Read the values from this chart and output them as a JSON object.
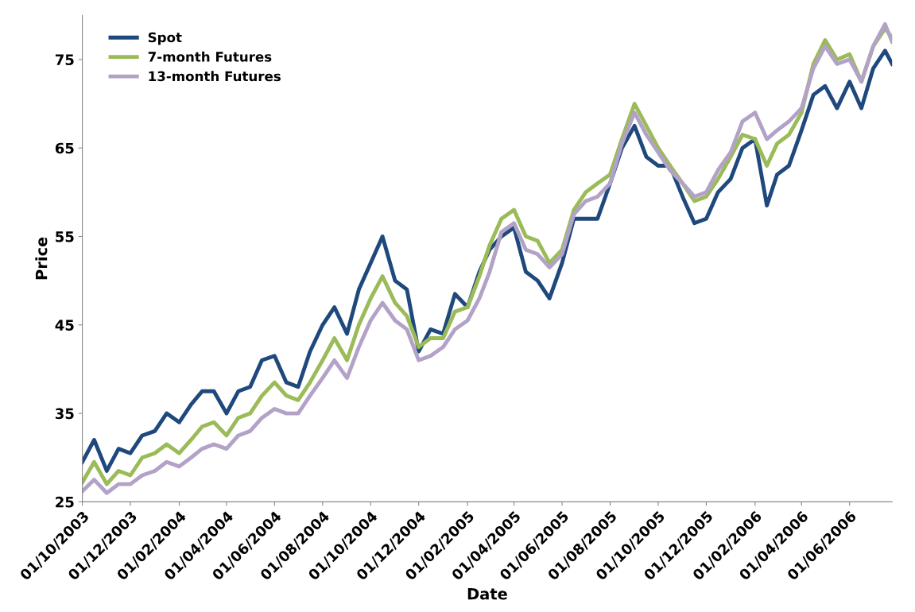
{
  "chart_data": {
    "type": "line",
    "xlabel": "Date",
    "ylabel": "Price",
    "x": [
      "2003-10-01",
      "2003-10-16",
      "2003-11-01",
      "2003-11-16",
      "2003-12-01",
      "2003-12-16",
      "2004-01-01",
      "2004-01-16",
      "2004-02-01",
      "2004-02-16",
      "2004-03-01",
      "2004-03-16",
      "2004-04-01",
      "2004-04-16",
      "2004-05-01",
      "2004-05-16",
      "2004-06-01",
      "2004-06-16",
      "2004-07-01",
      "2004-07-16",
      "2004-08-01",
      "2004-08-16",
      "2004-09-01",
      "2004-09-16",
      "2004-10-01",
      "2004-10-16",
      "2004-11-01",
      "2004-11-16",
      "2004-12-01",
      "2004-12-16",
      "2005-01-01",
      "2005-01-16",
      "2005-02-01",
      "2005-02-16",
      "2005-03-01",
      "2005-03-16",
      "2005-04-01",
      "2005-04-16",
      "2005-05-01",
      "2005-05-16",
      "2005-06-01",
      "2005-06-16",
      "2005-07-01",
      "2005-07-16",
      "2005-08-01",
      "2005-08-16",
      "2005-09-01",
      "2005-09-16",
      "2005-10-01",
      "2005-10-16",
      "2005-11-01",
      "2005-11-16",
      "2005-12-01",
      "2005-12-16",
      "2006-01-01",
      "2006-01-16",
      "2006-02-01",
      "2006-02-16",
      "2006-03-01",
      "2006-03-16",
      "2006-04-01",
      "2006-04-16",
      "2006-05-01",
      "2006-05-16",
      "2006-06-01",
      "2006-06-16",
      "2006-07-01",
      "2006-07-16",
      "2006-07-25"
    ],
    "series": [
      {
        "name": "Spot",
        "color": "#1f497d",
        "values": [
          29.5,
          32,
          28.5,
          31,
          30.5,
          32.5,
          33,
          35,
          34,
          36,
          37.5,
          37.5,
          35,
          37.5,
          38,
          41,
          41.5,
          38.5,
          38,
          42,
          45,
          47,
          44,
          49,
          52,
          55,
          50,
          49,
          42,
          44.5,
          44,
          48.5,
          47,
          51,
          53.5,
          55,
          56,
          51,
          50,
          48,
          52,
          57,
          57,
          57,
          61,
          65,
          67.5,
          64,
          63,
          63,
          59.5,
          56.5,
          57,
          60,
          61.5,
          65,
          66,
          58.5,
          62,
          63,
          67,
          71,
          72,
          69.5,
          72.5,
          69.5,
          74,
          76,
          74.5
        ]
      },
      {
        "name": "7-month Futures",
        "color": "#9bbb59",
        "values": [
          27.2,
          29.5,
          27,
          28.5,
          28,
          30,
          30.5,
          31.5,
          30.5,
          32,
          33.5,
          34,
          32.5,
          34.5,
          35,
          37,
          38.5,
          37,
          36.5,
          38.5,
          41,
          43.5,
          41,
          45,
          48,
          50.5,
          47.5,
          46,
          42.5,
          43.5,
          43.5,
          46.5,
          47,
          50.5,
          54,
          57,
          58,
          55,
          54.5,
          52,
          53.5,
          58,
          60,
          61,
          62,
          66,
          70,
          67.5,
          65,
          63,
          61,
          59,
          59.5,
          61.5,
          64,
          66.5,
          66,
          63,
          65.5,
          66.5,
          69,
          74.5,
          77.2,
          75,
          75.6,
          72.5,
          76.5,
          78.5,
          77.5
        ]
      },
      {
        "name": "13-month Futures",
        "color": "#b3a2c7",
        "values": [
          26.2,
          27.5,
          26,
          27,
          27,
          28,
          28.5,
          29.5,
          29,
          30,
          31,
          31.5,
          31,
          32.5,
          33,
          34.5,
          35.5,
          35,
          35,
          37,
          39,
          41,
          39,
          42.5,
          45.5,
          47.5,
          45.5,
          44.5,
          41,
          41.5,
          42.5,
          44.5,
          45.5,
          48,
          51,
          55.5,
          56.5,
          53.5,
          53,
          51.5,
          53,
          57.5,
          59,
          59.5,
          61,
          65.5,
          69,
          66.5,
          64.5,
          62.5,
          61,
          59.5,
          60,
          62.5,
          64.5,
          68,
          69,
          66,
          67,
          68,
          69.5,
          74,
          76.5,
          74.5,
          75,
          72.5,
          76.5,
          79,
          77
        ]
      }
    ],
    "xlim": [
      "2003-10-01",
      "2006-07-25"
    ],
    "xticks": [
      {
        "value": "2003-10-01",
        "label": "01/10/2003"
      },
      {
        "value": "2003-12-01",
        "label": "01/12/2003"
      },
      {
        "value": "2004-02-01",
        "label": "01/02/2004"
      },
      {
        "value": "2004-04-01",
        "label": "01/04/2004"
      },
      {
        "value": "2004-06-01",
        "label": "01/06/2004"
      },
      {
        "value": "2004-08-01",
        "label": "01/08/2004"
      },
      {
        "value": "2004-10-01",
        "label": "01/10/2004"
      },
      {
        "value": "2004-12-01",
        "label": "01/12/2004"
      },
      {
        "value": "2005-02-01",
        "label": "01/02/2005"
      },
      {
        "value": "2005-04-01",
        "label": "01/04/2005"
      },
      {
        "value": "2005-06-01",
        "label": "01/06/2005"
      },
      {
        "value": "2005-08-01",
        "label": "01/08/2005"
      },
      {
        "value": "2005-10-01",
        "label": "01/10/2005"
      },
      {
        "value": "2005-12-01",
        "label": "01/12/2005"
      },
      {
        "value": "2006-02-01",
        "label": "01/02/2006"
      },
      {
        "value": "2006-04-01",
        "label": "01/04/2006"
      },
      {
        "value": "2006-06-01",
        "label": "01/06/2006"
      }
    ],
    "ylim": [
      25,
      80
    ],
    "yticks": [
      25,
      35,
      45,
      55,
      65,
      75
    ],
    "grid": false,
    "legend": "top left",
    "marker": "none",
    "line_style": "solid"
  }
}
